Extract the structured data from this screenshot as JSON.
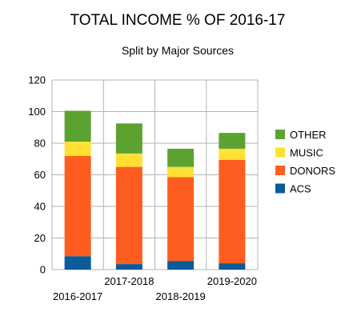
{
  "chart_data": {
    "type": "bar",
    "stacked": true,
    "title": "TOTAL INCOME % OF 2016-17",
    "subtitle": "Split by Major Sources",
    "xlabel": "",
    "ylabel": "",
    "categories": [
      "2016-2017",
      "2017-2018",
      "2018-2019",
      "2019-2020"
    ],
    "ylim": [
      0,
      120
    ],
    "yticks": [
      0,
      20,
      40,
      60,
      80,
      100,
      120
    ],
    "grid": true,
    "legend_position": "right",
    "series": [
      {
        "name": "ACS",
        "color": "#0b5b99",
        "values": [
          8.5,
          3.5,
          5.5,
          4
        ]
      },
      {
        "name": "DONORS",
        "color": "#ff5c1f",
        "values": [
          63.5,
          61.5,
          53,
          65.5
        ]
      },
      {
        "name": "MUSIC",
        "color": "#ffe033",
        "values": [
          9,
          8.5,
          6.5,
          7
        ]
      },
      {
        "name": "OTHER",
        "color": "#5ca230",
        "values": [
          19.5,
          19,
          11.5,
          10
        ]
      }
    ]
  }
}
